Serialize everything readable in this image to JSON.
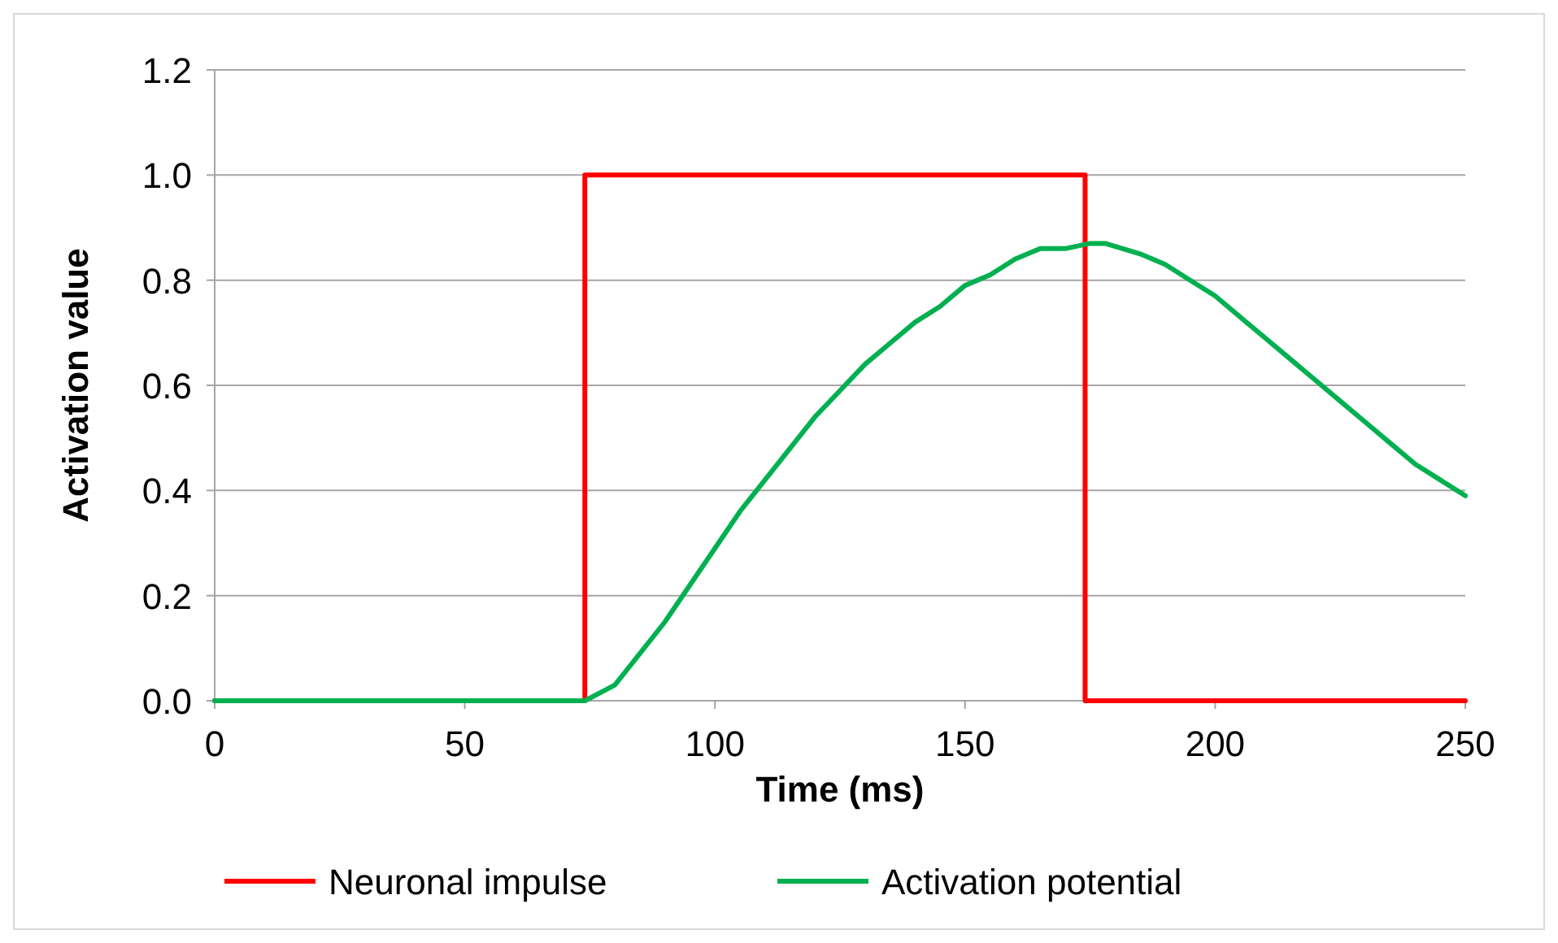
{
  "chart_data": {
    "type": "line",
    "xlabel": "Time (ms)",
    "ylabel": "Activation value",
    "xlim": [
      0,
      250
    ],
    "xticks": [
      0,
      50,
      100,
      150,
      200,
      250
    ],
    "ylim": [
      0,
      1.2
    ],
    "yticks": [
      {
        "value": 0,
        "label": "0.0"
      },
      {
        "value": 0.2,
        "label": "0.2"
      },
      {
        "value": 0.4,
        "label": "0.4"
      },
      {
        "value": 0.6,
        "label": "0.6"
      },
      {
        "value": 0.8,
        "label": "0.8"
      },
      {
        "value": 1,
        "label": "1.0"
      },
      {
        "value": 1.2,
        "label": "1.2"
      }
    ],
    "grid": "y",
    "legend": "bottom",
    "marker": "none",
    "line_style": "solid",
    "series": [
      {
        "name": "Neuronal impulse",
        "color": "#ff0000",
        "x": [
          0,
          74,
          74,
          174,
          174,
          250
        ],
        "values": [
          0,
          0,
          1,
          1,
          0,
          0
        ]
      },
      {
        "name": "Activation potential",
        "color": "#00b050",
        "x": [
          0,
          74,
          78,
          80,
          85,
          90,
          95,
          100,
          105,
          110,
          115,
          120,
          125,
          130,
          135,
          140,
          145,
          150,
          155,
          160,
          165,
          170,
          175,
          178,
          185,
          190,
          195,
          200,
          205,
          210,
          215,
          220,
          225,
          230,
          235,
          240,
          245,
          250
        ],
        "values": [
          0,
          0,
          0.02,
          0.03,
          0.09,
          0.15,
          0.22,
          0.29,
          0.36,
          0.42,
          0.48,
          0.54,
          0.59,
          0.64,
          0.68,
          0.72,
          0.75,
          0.79,
          0.81,
          0.84,
          0.86,
          0.86,
          0.87,
          0.87,
          0.85,
          0.83,
          0.8,
          0.77,
          0.73,
          0.69,
          0.65,
          0.61,
          0.57,
          0.53,
          0.49,
          0.45,
          0.42,
          0.39
        ]
      }
    ]
  }
}
